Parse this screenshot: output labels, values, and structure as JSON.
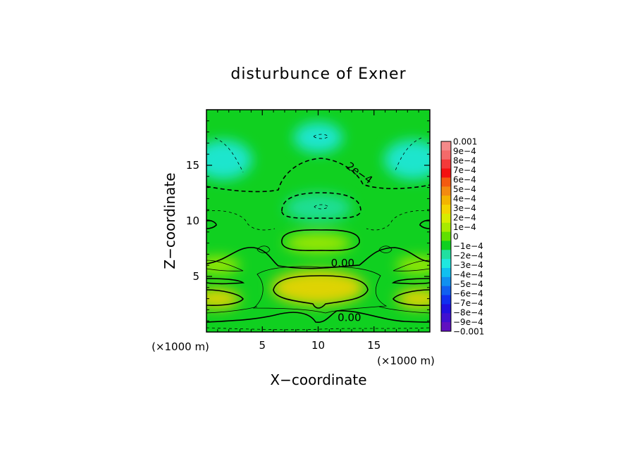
{
  "chart_data": {
    "type": "heatmap",
    "title": "disturbunce of Exner",
    "xlabel": "X−coordinate",
    "ylabel": "Z−coordinate",
    "x_unit": "(×1000 m)",
    "y_unit": "(×1000 m)",
    "xlim": [
      0,
      20
    ],
    "ylim": [
      0,
      20
    ],
    "xticks": [
      {
        "value": 5,
        "label": "5"
      },
      {
        "value": 10,
        "label": "10"
      },
      {
        "value": 15,
        "label": "15"
      }
    ],
    "yticks": [
      {
        "value": 5,
        "label": "5"
      },
      {
        "value": 10,
        "label": "10"
      },
      {
        "value": 15,
        "label": "15"
      }
    ],
    "colorbar": {
      "range": [
        -0.001,
        0.001
      ],
      "labels": [
        "0.001",
        "9e−4",
        "8e−4",
        "7e−4",
        "6e−4",
        "5e−4",
        "4e−4",
        "3e−4",
        "2e−4",
        "1e−4",
        "0",
        "−1e−4",
        "−2e−4",
        "−3e−4",
        "−4e−4",
        "−5e−4",
        "−6e−4",
        "−7e−4",
        "−8e−4",
        "−9e−4",
        "−0.001"
      ],
      "colors": [
        "#f48a8a",
        "#f46a6a",
        "#f43a3a",
        "#f41010",
        "#f45a10",
        "#f48a10",
        "#f4b400",
        "#f4d400",
        "#d8ec00",
        "#a8ea00",
        "#60e000",
        "#10d020",
        "#20e0a0",
        "#20e8e0",
        "#10c0f0",
        "#1090f0",
        "#1060f0",
        "#1030f0",
        "#2010e0",
        "#4010d0",
        "#6010c0"
      ],
      "tick_values": [
        0.001,
        0.0009,
        0.0008,
        0.0007,
        0.0006,
        0.0005,
        0.0004,
        0.0003,
        0.0002,
        0.0001,
        0,
        -0.0001,
        -0.0002,
        -0.0003,
        -0.0004,
        -0.0005,
        -0.0006,
        -0.0007,
        -0.0008,
        -0.0009,
        -0.001
      ]
    },
    "blobs": [
      {
        "x": 1.5,
        "z": 15.5,
        "rx": 2.6,
        "rz": 1.8,
        "value": -0.00034
      },
      {
        "x": 18.5,
        "z": 15.5,
        "rx": 2.6,
        "rz": 1.8,
        "value": -0.00034
      },
      {
        "x": 10,
        "z": 17.5,
        "rx": 2.2,
        "rz": 1.4,
        "value": -0.00026
      },
      {
        "x": 10,
        "z": 11.2,
        "rx": 3.0,
        "rz": 1.3,
        "value": -0.00024
      },
      {
        "x": 10,
        "z": 4.0,
        "rx": 4.2,
        "rz": 1.6,
        "value": 0.00028
      },
      {
        "x": 10,
        "z": 8.0,
        "rx": 3.0,
        "rz": 0.9,
        "value": 0.00012
      },
      {
        "x": 1.0,
        "z": 3.0,
        "rx": 2.0,
        "rz": 0.9,
        "value": 0.0003
      },
      {
        "x": 19.0,
        "z": 3.0,
        "rx": 2.0,
        "rz": 0.9,
        "value": 0.0003
      },
      {
        "x": 1.0,
        "z": 6.0,
        "rx": 2.0,
        "rz": 0.8,
        "value": 0.00012
      },
      {
        "x": 19.0,
        "z": 6.0,
        "rx": 2.0,
        "rz": 0.8,
        "value": 0.00012
      }
    ],
    "background_value": -0.00012,
    "contour_labels": [
      {
        "text": "2e−4",
        "x": 13.7,
        "z": 14.3,
        "rotate": 35
      },
      {
        "text": "0.00",
        "x": 12.2,
        "z": 6.2,
        "rotate": 0
      },
      {
        "text": "0.00",
        "x": 12.8,
        "z": 1.3,
        "rotate": 0
      }
    ],
    "grid": false,
    "legend": "colorbar-right"
  }
}
